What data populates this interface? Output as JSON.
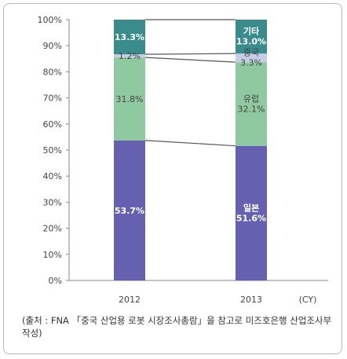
{
  "chart_data": {
    "type": "bar",
    "stacked": true,
    "normalized_percent": true,
    "categories": [
      "2012",
      "2013"
    ],
    "x_unit": "(CY)",
    "ylim": [
      0,
      100
    ],
    "yticks": [
      "0%",
      "10%",
      "20%",
      "30%",
      "40%",
      "50%",
      "60%",
      "70%",
      "80%",
      "90%",
      "100%"
    ],
    "grid": false,
    "series": [
      {
        "name": "일본",
        "values": [
          53.7,
          51.6
        ],
        "labels": [
          "53.7%",
          "51.6%"
        ],
        "color": "#6660b0"
      },
      {
        "name": "유럽",
        "values": [
          31.8,
          32.1
        ],
        "labels": [
          "31.8%",
          "32.1%"
        ],
        "color": "#8fc9a0"
      },
      {
        "name": "중국",
        "values": [
          1.2,
          3.3
        ],
        "labels": [
          "1.2%",
          "3.3%"
        ],
        "color": "#c8cde6"
      },
      {
        "name": "기타",
        "values": [
          13.3,
          13.0
        ],
        "labels": [
          "13.3%",
          "13.0%"
        ],
        "color": "#3a8c8c"
      }
    ],
    "series_labels_shown": [
      {
        "series": "일본",
        "category": "2013"
      },
      {
        "series": "유럽",
        "category": "2013"
      },
      {
        "series": "중국",
        "category": "2013"
      },
      {
        "series": "기타",
        "category": "2013"
      }
    ]
  },
  "source_note": "(출처 : FNA 「중국 산업용 로봇 시장조사총람」을 참고로 미즈호은행 산업조사부 작성)"
}
